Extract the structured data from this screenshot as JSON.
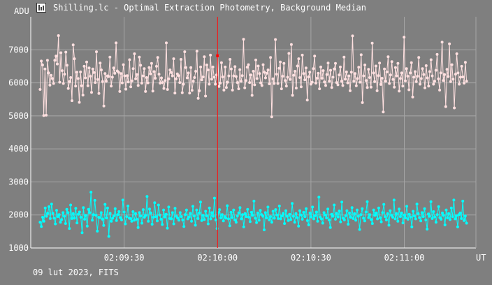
{
  "window": {
    "title": "Shilling.lc - Optimal Extraction Photometry, Background Median",
    "icon": "light-curve-app-icon"
  },
  "footer": {
    "text": "09 lut 2023, FITS"
  },
  "colors": {
    "background": "#7f7f7f",
    "grid": "#a6a6a6",
    "axis": "#ffffff",
    "series_upper": "#ffe0e0",
    "series_lower": "#00ffff",
    "cursor": "#ff0000"
  },
  "chart_data": {
    "type": "scatter",
    "title": "Shilling.lc - Optimal Extraction Photometry, Background Median",
    "ylabel": "ADU",
    "xlabel": "UT",
    "ylim": [
      1000,
      8000
    ],
    "yticks": [
      1000,
      2000,
      3000,
      4000,
      5000,
      6000,
      7000
    ],
    "xticks": [
      "02:09:30",
      "02:10:00",
      "02:10:30",
      "02:11:00"
    ],
    "grid": true,
    "cursor_x": "02:10:00",
    "x_start": "02:09:00",
    "x_end": "02:11:23",
    "series": [
      {
        "role": "upper",
        "color": "#ffe0e0",
        "values": [
          5800,
          6660,
          6540,
          5010,
          6420,
          5020,
          6680,
          6300,
          5930,
          6230,
          6130,
          5980,
          6680,
          6810,
          6570,
          7430,
          6020,
          6910,
          6370,
          5980,
          6260,
          6930,
          6530,
          5830,
          6040,
          6160,
          5460,
          7150,
          6730,
          5900,
          6320,
          6130,
          5410,
          6330,
          5910,
          5630,
          6500,
          6150,
          6630,
          5910,
          6450,
          6200,
          5710,
          6420,
          6310,
          6010,
          6940,
          6100,
          5680,
          6600,
          6390,
          6040,
          5300,
          6280,
          6050,
          6210,
          6190,
          6780,
          5900,
          6170,
          6450,
          6290,
          7210,
          6360,
          6320,
          5740,
          6280,
          6000,
          6550,
          6210,
          5810,
          6220,
          6030,
          6700,
          5880,
          6060,
          6430,
          6880,
          6120,
          6250,
          5920,
          6780,
          6530,
          5990,
          6210,
          6430,
          5740,
          6160,
          6000,
          6460,
          6270,
          6590,
          5750,
          6340,
          6140,
          6500,
          6770,
          6260,
          5990,
          6150,
          6010,
          5830,
          6070,
          7210,
          5800,
          6120,
          6390,
          6310,
          6210,
          6730,
          5690,
          6120,
          6270,
          6220,
          6010,
          6710,
          5700,
          5960,
          6940,
          6460,
          6150,
          6300,
          5690,
          6460,
          5770,
          6050,
          6160,
          6350,
          6960,
          5530,
          5760,
          6480,
          6090,
          6180,
          6790,
          5600,
          6540,
          6390,
          5960,
          6840,
          6110,
          6480,
          6170,
          5960,
          6240,
          6820,
          5890,
          5990,
          6610,
          6180,
          5780,
          6480,
          5860,
          6020,
          6210,
          6710,
          6420,
          5780,
          6210,
          6490,
          6190,
          6010,
          5820,
          6400,
          6050,
          6220,
          7320,
          5850,
          6070,
          6470,
          6550,
          6010,
          6240,
          5620,
          6350,
          5940,
          6690,
          6130,
          6510,
          6280,
          6000,
          5920,
          6550,
          6320,
          6150,
          6290,
          6390,
          5970,
          6770,
          4970,
          6120,
          5980,
          7310,
          6260,
          5980,
          6440,
          6630,
          5820,
          6200,
          6590,
          6070,
          5900,
          6170,
          6890,
          6100,
          7160,
          5620,
          6230,
          6350,
          5840,
          6510,
          6730,
          6160,
          5880,
          6840,
          6280,
          6090,
          6450,
          5480,
          6180,
          6320,
          5960,
          6020,
          6430,
          6810,
          5990,
          6140,
          6290,
          5820,
          6480,
          6140,
          6370,
          6030,
          5920,
          6250,
          6600,
          6050,
          6380,
          5860,
          6170,
          6420,
          6590,
          6010,
          5940,
          6240,
          6480,
          6050,
          5920,
          6780,
          6110,
          6330,
          6000,
          6210,
          5760,
          6320,
          7420,
          6050,
          6280,
          5910,
          6130,
          6470,
          6020,
          6850,
          5400,
          6210,
          6540,
          6070,
          5860,
          6410,
          6160,
          5870,
          7200,
          6300,
          6040,
          6510,
          5760,
          6220,
          6600,
          5950,
          6140,
          5120,
          6420,
          6050,
          6330,
          6790,
          5980,
          6240,
          6640,
          6100,
          5870,
          6460,
          6210,
          6590,
          5750,
          6130,
          6300,
          5900,
          7380,
          6060,
          6430,
          6200,
          5790,
          6300,
          6610,
          5570,
          6170,
          6340,
          6040,
          6200,
          6770,
          5960,
          6130,
          6430,
          6250,
          5850,
          6520,
          6150,
          5900,
          6340,
          6700,
          6210,
          5960,
          6050,
          6380,
          6860,
          6120,
          5780,
          6300,
          7230,
          6070,
          6250,
          5280,
          6410,
          6190,
          7180,
          6040,
          6550,
          6110,
          5240,
          6260,
          6880,
          6300,
          5960,
          6170,
          6500,
          6180,
          5990,
          6620,
          6050
        ]
      },
      {
        "role": "lower",
        "color": "#00ffff",
        "values": [
          1780,
          1650,
          1930,
          1810,
          2210,
          1960,
          2050,
          2250,
          1890,
          2330,
          2050,
          1900,
          1730,
          2140,
          1950,
          2010,
          1780,
          1860,
          2070,
          1960,
          1740,
          2170,
          2070,
          1590,
          2300,
          1890,
          2040,
          1900,
          2200,
          1760,
          2020,
          2090,
          1930,
          1460,
          2220,
          1870,
          1990,
          1660,
          2170,
          2070,
          2690,
          1840,
          2010,
          2440,
          1990,
          1510,
          1930,
          1920,
          2070,
          1870,
          1680,
          2320,
          1910,
          2210,
          1350,
          2050,
          1810,
          1900,
          1970,
          2190,
          1830,
          2010,
          2100,
          1920,
          1850,
          2450,
          2090,
          1730,
          1950,
          2270,
          1900,
          1890,
          1810,
          2100,
          1840,
          2040,
          1870,
          1620,
          2070,
          1970,
          1750,
          2160,
          1930,
          1990,
          2560,
          1810,
          2180,
          2060,
          1720,
          1930,
          2370,
          1950,
          1820,
          2300,
          2000,
          1870,
          1710,
          2150,
          1940,
          2020,
          1600,
          2240,
          1890,
          1880,
          2070,
          1730,
          2200,
          1960,
          1910,
          1840,
          2070,
          1950,
          1850,
          1650,
          2010,
          2150,
          1880,
          1940,
          2050,
          1810,
          2260,
          1970,
          1690,
          2150,
          1890,
          2060,
          2390,
          1830,
          1990,
          1860,
          2110,
          1970,
          1730,
          2210,
          1880,
          2070,
          1960,
          2510,
          1850,
          1590,
          2070,
          2160,
          1910,
          2010,
          1820,
          1950,
          1900,
          2280,
          1880,
          1670,
          2080,
          1920,
          2150,
          1850,
          1780,
          1970,
          2060,
          2220,
          1880,
          2010,
          1640,
          2040,
          1950,
          2170,
          1930,
          1800,
          2080,
          1990,
          2420,
          1900,
          1770,
          2060,
          1840,
          2140,
          2010,
          1960,
          1550,
          2070,
          1910,
          2240,
          1850,
          1950,
          1780,
          2110,
          1900,
          2160,
          2000,
          1890,
          2270,
          1880,
          1970,
          2050,
          1740,
          2130,
          1960,
          1830,
          2020,
          1860,
          2350,
          1960,
          1780,
          2040,
          1920,
          1660,
          2130,
          2000,
          1870,
          2080,
          1950,
          2190,
          1830,
          1700,
          2060,
          1940,
          2240,
          1880,
          1980,
          2090,
          1810,
          2540,
          1940,
          1880,
          1750,
          2070,
          2000,
          1910,
          2180,
          1850,
          1620,
          2020,
          1960,
          2300,
          1870,
          2050,
          1940,
          2120,
          1790,
          2390,
          1900,
          1850,
          1980,
          2130,
          1720,
          2060,
          1930,
          2220,
          1890,
          2040,
          1840,
          2150,
          1960,
          1560,
          2010,
          2190,
          1900,
          1820,
          2090,
          2400,
          1920,
          2010,
          1860,
          1740,
          2150,
          1990,
          2060,
          1880,
          2210,
          1920,
          1790,
          2070,
          2320,
          1950,
          1850,
          2040,
          1690,
          2130,
          1990,
          1930,
          2450,
          1880,
          2040,
          1810,
          2180,
          1950,
          2060,
          1760,
          2000,
          1910,
          2260,
          1870,
          2020,
          1940,
          1640,
          2110,
          1970,
          1880,
          2330,
          2040,
          1920,
          1820,
          2070,
          1950,
          2190,
          1850,
          1570,
          2030,
          1960,
          2400,
          1890,
          2100,
          1940,
          1780,
          2010,
          2250,
          1920,
          1870,
          2060,
          1990,
          1700,
          2150,
          1910,
          2040,
          1860,
          2210,
          1950,
          2450,
          1880,
          1980,
          1640,
          2010,
          2060,
          1890,
          2420,
          1830,
          1970,
          1750
        ]
      }
    ]
  }
}
